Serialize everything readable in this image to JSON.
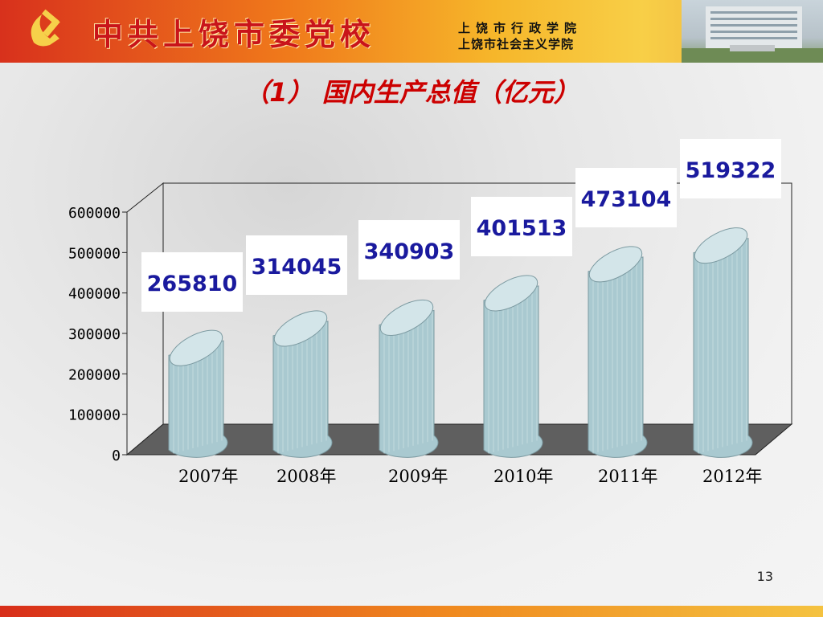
{
  "header": {
    "title": "中共上饶市委党校",
    "subtitle_line1": "上饶市行政学院",
    "subtitle_line2": "上饶市社会主义学院"
  },
  "slide_title": "（1） 国内生产总值（亿元）",
  "page_number": "13",
  "colors": {
    "bar_fill": "#a9c9d0",
    "bar_top": "#d3e5e9",
    "label_text": "#1a1a9e",
    "title_text": "#cc0000",
    "floor": "#5f5f5f"
  },
  "chart_data": {
    "type": "bar",
    "style": "3d-cylinder",
    "title": "（1） 国内生产总值（亿元）",
    "categories": [
      "2007年",
      "2008年",
      "2009年",
      "2010年",
      "2011年",
      "2012年"
    ],
    "values": [
      265810,
      314045,
      340903,
      401513,
      473104,
      519322
    ],
    "data_labels": [
      "265810",
      "314045",
      "340903",
      "401513",
      "473104",
      "519322"
    ],
    "ylim": [
      0,
      600000
    ],
    "yticks": [
      "0",
      "100000",
      "200000",
      "300000",
      "400000",
      "500000",
      "600000"
    ],
    "xlabel": "",
    "ylabel": "",
    "grid": false,
    "legend": "none"
  }
}
